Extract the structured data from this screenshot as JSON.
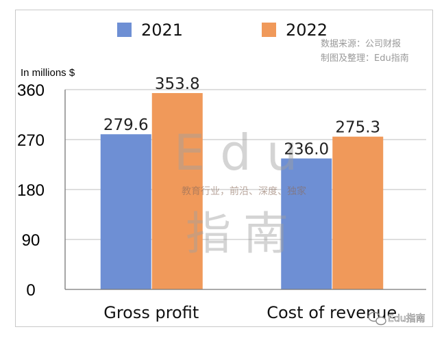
{
  "chart_data": {
    "type": "bar",
    "unit_label": "In millions $",
    "categories": [
      "Gross profit",
      "Cost of revenue"
    ],
    "series": [
      {
        "name": "2021",
        "color": "#6e8fd4",
        "values": [
          279.6,
          236.0
        ],
        "labels": [
          "279.6",
          "236.0"
        ]
      },
      {
        "name": "2022",
        "color": "#f0995a",
        "values": [
          353.8,
          275.3
        ],
        "labels": [
          "353.8",
          "275.3"
        ]
      }
    ],
    "yticks": [
      0,
      90,
      180,
      270,
      360
    ],
    "ylim": [
      0,
      360
    ],
    "grid": true,
    "legend_position": "top"
  },
  "source_note": [
    "数据来源：公司财报",
    "制图及整理：Edu指南"
  ],
  "watermark": {
    "big_text": "Edu",
    "big_text_2": "指南",
    "tagline": "教育行业，前沿、深度、独家"
  },
  "wechat_badge": "Edu指南"
}
